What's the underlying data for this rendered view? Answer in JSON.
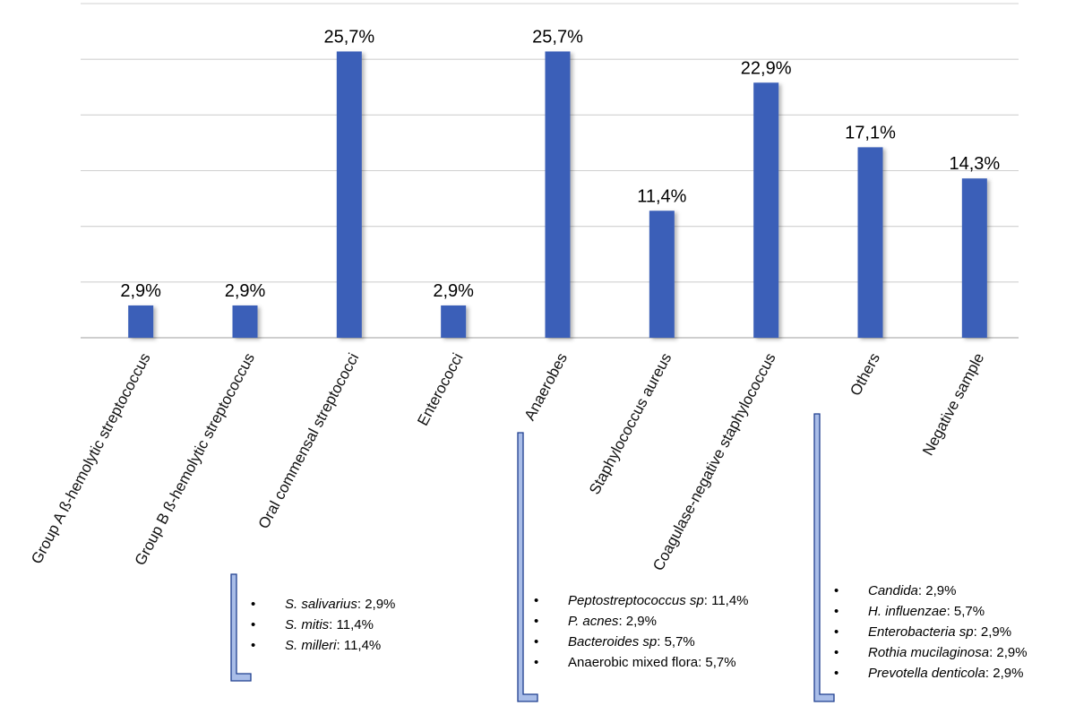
{
  "chart_data": {
    "type": "bar",
    "categories": [
      "Group A ß-hemolytic streptococcus",
      "Group B ß-hemolytic streptococcus",
      "Oral commensal streptococci",
      "Enterococci",
      "Anaerobes",
      "Staphylococcus aureus",
      "Coagulase-negative staphylococcus",
      "Others",
      "Negative sample"
    ],
    "values": [
      2.9,
      2.9,
      25.7,
      2.9,
      25.7,
      11.4,
      22.9,
      17.1,
      14.3
    ],
    "data_labels": [
      "2,9%",
      "2,9%",
      "25,7%",
      "2,9%",
      "25,7%",
      "11,4%",
      "22,9%",
      "17,1%",
      "14,3%"
    ],
    "ylim": [
      0,
      30
    ],
    "grid": true,
    "title": "",
    "xlabel": "",
    "ylabel": "",
    "bar_color": "#3a5fb8",
    "breakdowns": [
      {
        "category": "Oral commensal streptococci",
        "items": [
          {
            "name": "S. salivarius",
            "value": ": 2,9%"
          },
          {
            "name": "S. mitis",
            "value": ": 11,4%"
          },
          {
            "name": "S. milleri",
            "value": ": 11,4%"
          }
        ]
      },
      {
        "category": "Anaerobes",
        "items": [
          {
            "name": "Peptostreptococcus sp",
            "value": ": 11,4%"
          },
          {
            "name": "P. acnes",
            "value": ": 2,9%"
          },
          {
            "name": "Bacteroides sp",
            "value": ": 5,7%"
          },
          {
            "name": "Anaerobic mixed flora",
            "value": ": 5,7%",
            "italic": false
          }
        ]
      },
      {
        "category": "Others",
        "items": [
          {
            "name": "Candida",
            "value": ": 2,9%"
          },
          {
            "name": "H. influenzae",
            "value": ": 5,7%"
          },
          {
            "name": "Enterobacteria sp",
            "value": ": 2,9%"
          },
          {
            "name": "Rothia mucilaginosa",
            "value": ": 2,9%"
          },
          {
            "name": "Prevotella denticola",
            "value": ": 2,9%"
          }
        ]
      }
    ],
    "bracket_color": "#a9bde8"
  }
}
